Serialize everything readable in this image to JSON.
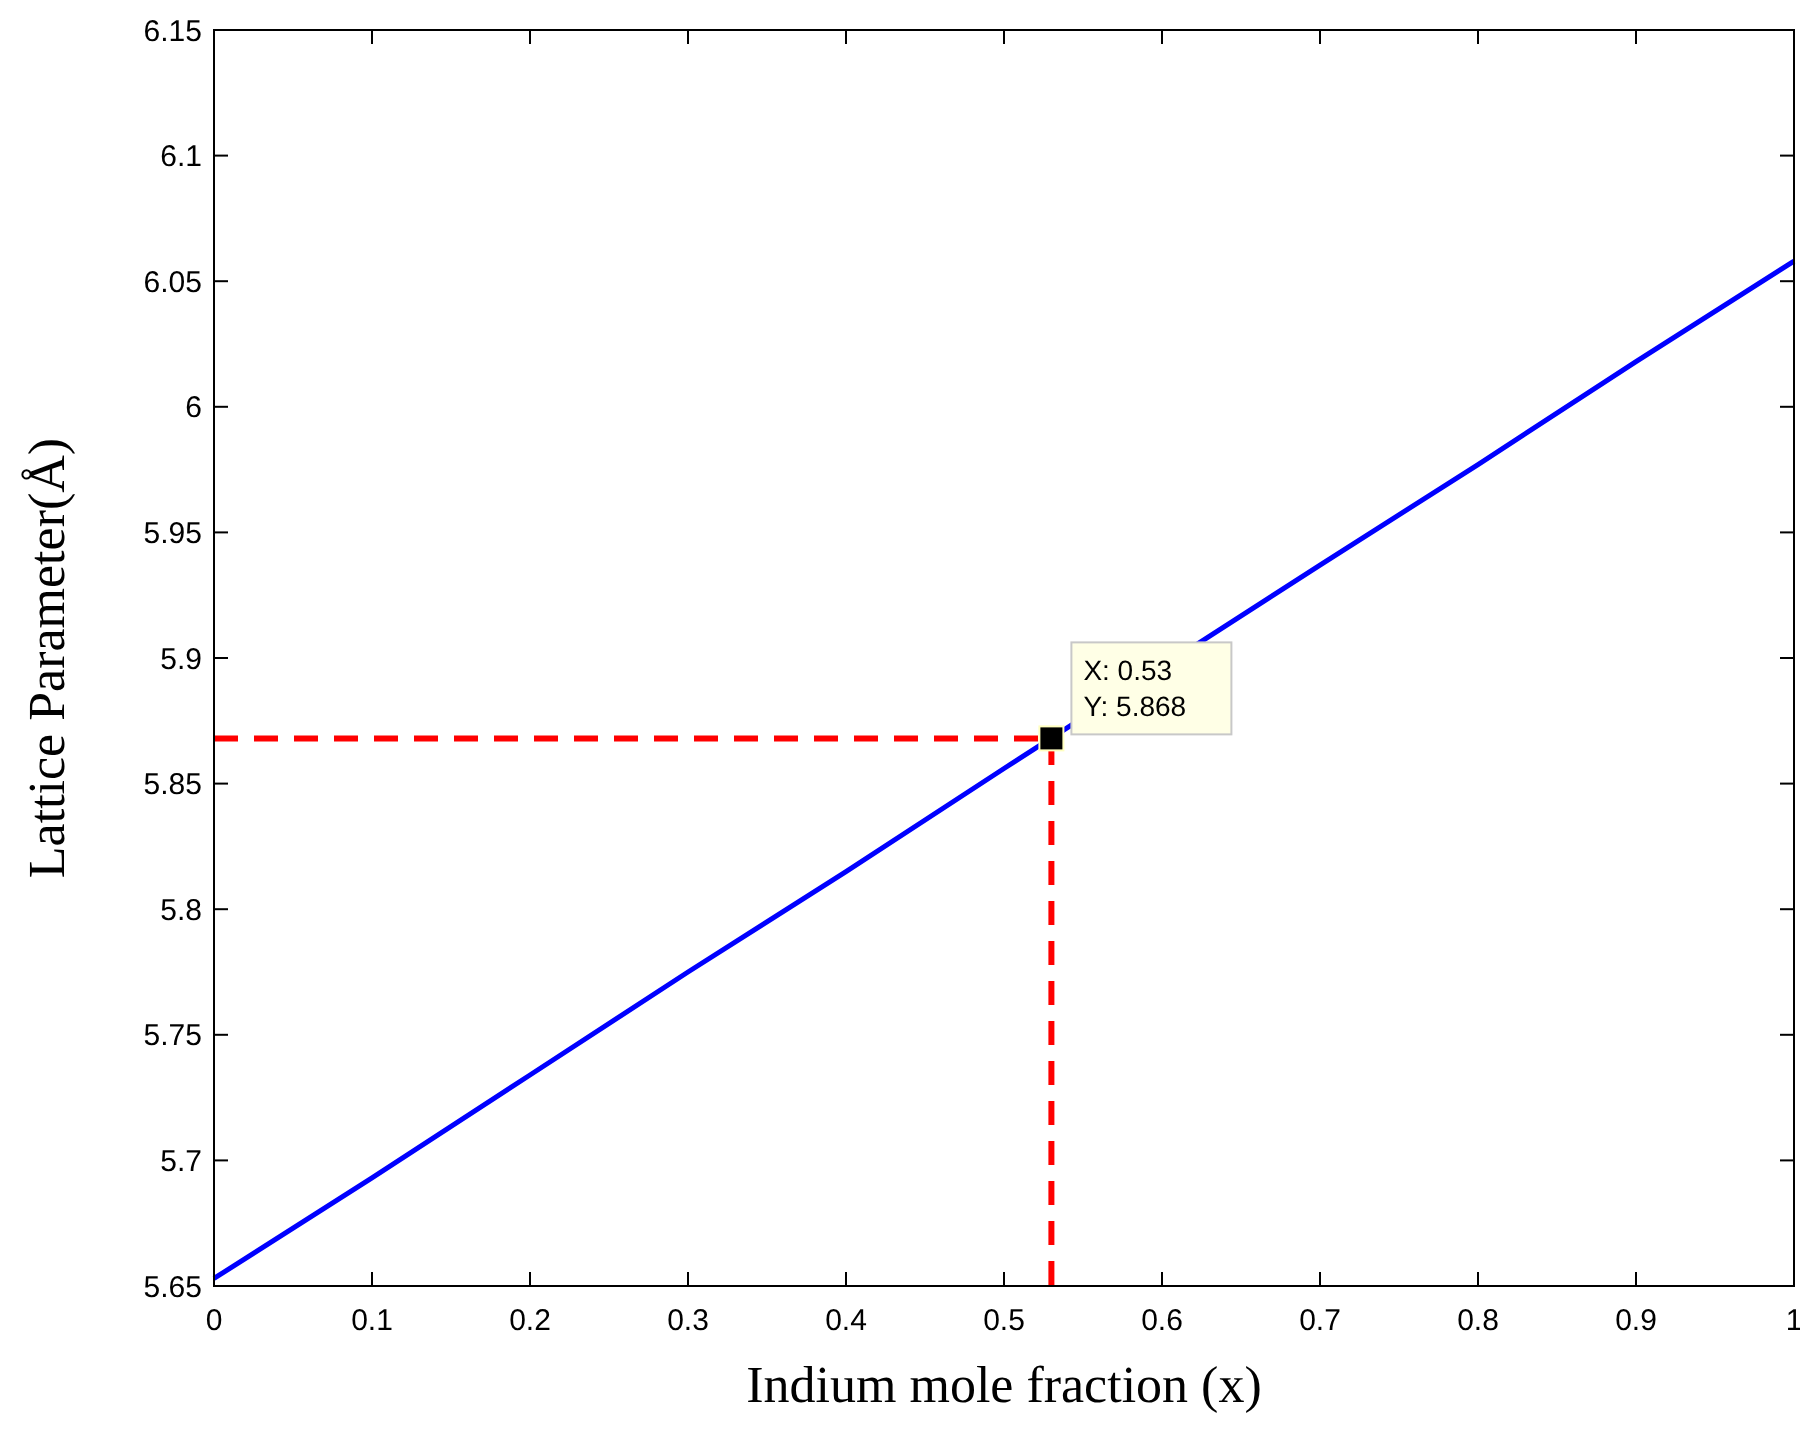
{
  "chart_data": {
    "type": "line",
    "xlabel": "Indium mole fraction (x)",
    "ylabel": "Lattice Parameter(Å)",
    "xlim": [
      0,
      1
    ],
    "ylim": [
      5.65,
      6.15
    ],
    "xticks": [
      0,
      0.1,
      0.2,
      0.3,
      0.4,
      0.5,
      0.6,
      0.7,
      0.8,
      0.9,
      1
    ],
    "yticks": [
      5.65,
      5.7,
      5.75,
      5.8,
      5.85,
      5.9,
      5.95,
      6,
      6.05,
      6.1,
      6.15
    ],
    "grid": false,
    "series": [
      {
        "color": "#0000ff",
        "x": [
          0,
          0.1,
          0.2,
          0.3,
          0.4,
          0.5,
          0.7,
          0.8,
          0.9,
          1
        ],
        "values": [
          5.653,
          5.693,
          5.734,
          5.775,
          5.815,
          5.856,
          5.937,
          5.977,
          6.018,
          6.058
        ],
        "line_style": "solid",
        "marker": "none"
      },
      {
        "color": "#ff0000",
        "x": [
          0,
          0.53,
          0.53
        ],
        "values": [
          5.868,
          5.868,
          5.65
        ],
        "line_style": "dashed",
        "marker": "none"
      },
      {
        "type": "scatter",
        "color": "#000000",
        "x": [
          0.53
        ],
        "values": [
          5.868
        ],
        "marker": "square"
      }
    ],
    "annotations": [
      {
        "text": "X: 0.53\nY: 5.868",
        "x": 0.53,
        "y": 5.868
      }
    ]
  }
}
